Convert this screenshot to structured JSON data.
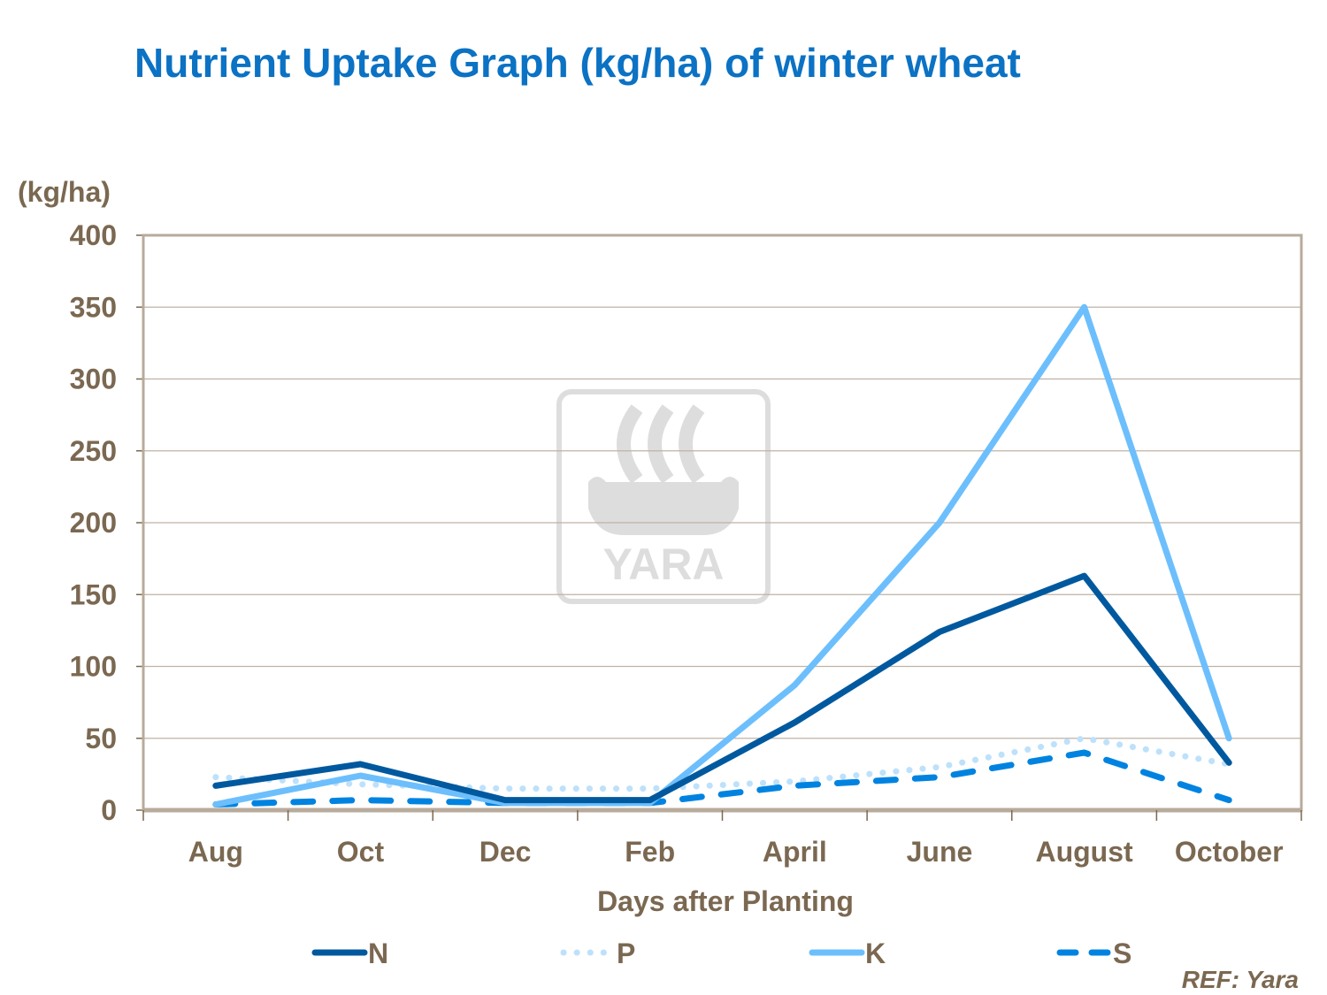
{
  "chart_data": {
    "type": "line",
    "title": "Nutrient Uptake Graph (kg/ha) of winter wheat",
    "ylabel": "(kg/ha)",
    "xlabel": "Days after Planting",
    "categories": [
      "Aug",
      "Oct",
      "Dec",
      "Feb",
      "April",
      "June",
      "August",
      "October"
    ],
    "ylim": [
      0,
      400
    ],
    "yticks": [
      0,
      50,
      100,
      150,
      200,
      250,
      300,
      350,
      400
    ],
    "grid": true,
    "legend_position": "bottom",
    "series": [
      {
        "name": "N",
        "values": [
          17,
          32,
          7,
          7,
          61,
          124,
          163,
          33
        ],
        "color": "#00599e",
        "style": "solid"
      },
      {
        "name": "P",
        "values": [
          23,
          18,
          15,
          15,
          20,
          30,
          50,
          32
        ],
        "color": "#bde1fb",
        "style": "dotted"
      },
      {
        "name": "K",
        "values": [
          4,
          24,
          5,
          5,
          87,
          200,
          350,
          50
        ],
        "color": "#6cbffc",
        "style": "solid"
      },
      {
        "name": "S",
        "values": [
          4,
          7,
          5,
          5,
          17,
          23,
          40,
          7
        ],
        "color": "#0083e0",
        "style": "dashed"
      }
    ]
  },
  "watermark": "YARA",
  "reference": "REF: Yara"
}
